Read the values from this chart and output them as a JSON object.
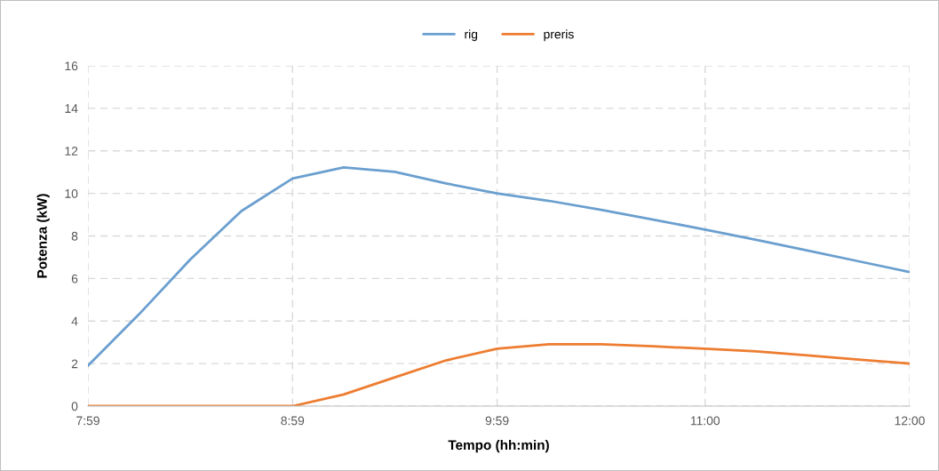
{
  "chart_data": {
    "type": "line",
    "xlabel": "Tempo (hh:min)",
    "ylabel": "Potenza (kW)",
    "x": [
      7.9833,
      8.2333,
      8.4833,
      8.7333,
      8.9833,
      9.2333,
      9.4833,
      9.7333,
      9.9833,
      10.2375,
      10.4917,
      10.7458,
      11,
      11.25,
      11.5,
      11.75,
      12
    ],
    "series": [
      {
        "name": "rig",
        "color": "#6a9fcf",
        "values": [
          1.9,
          4.32,
          6.89,
          9.17,
          10.7,
          11.22,
          11.01,
          10.47,
          10.0,
          9.65,
          9.23,
          8.77,
          8.3,
          7.82,
          7.32,
          6.81,
          6.3
        ]
      },
      {
        "name": "preris",
        "color": "#ed7d31",
        "values": [
          0,
          0,
          0,
          0,
          0,
          0.55,
          1.35,
          2.15,
          2.7,
          2.91,
          2.91,
          2.81,
          2.7,
          2.57,
          2.39,
          2.19,
          2.0
        ]
      }
    ],
    "xlim": [
      7.9833,
      12
    ],
    "xticks": [
      {
        "value": 7.9833,
        "label": "7:59"
      },
      {
        "value": 8.9833,
        "label": "8:59"
      },
      {
        "value": 9.9833,
        "label": "9:59"
      },
      {
        "value": 11,
        "label": "11:00"
      },
      {
        "value": 12,
        "label": "12:00"
      }
    ],
    "ylim": [
      0,
      16
    ],
    "yticks": [
      0,
      2,
      4,
      6,
      8,
      10,
      12,
      14,
      16
    ],
    "grid": true,
    "legend": "top",
    "marker": "none",
    "line_style": "solid"
  }
}
